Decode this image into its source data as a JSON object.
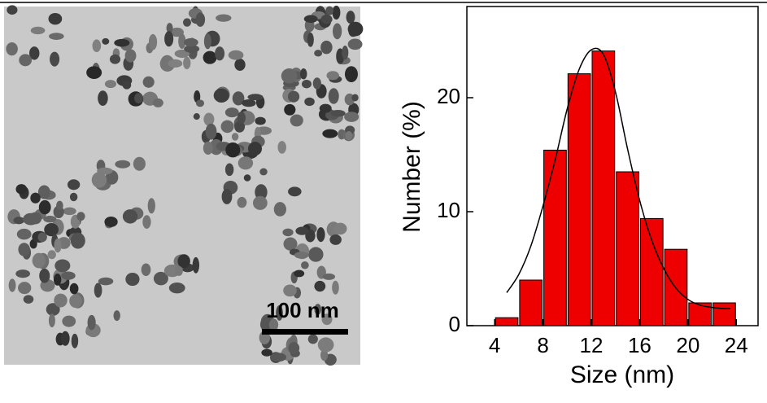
{
  "image": {
    "scale_bar": "100 nm"
  },
  "chart_data": {
    "type": "histogram",
    "xlabel": "Size (nm)",
    "ylabel": "Number (%)",
    "bins": [
      4,
      6,
      8,
      10,
      12,
      14,
      16,
      18,
      20,
      22,
      24
    ],
    "values": [
      0.7,
      4,
      15.4,
      22.1,
      24.1,
      13.5,
      9.4,
      6.7,
      2,
      2
    ],
    "color": "#ee0000",
    "edgecolor": "#000000",
    "fit": {
      "color": "#000000",
      "x": [
        5,
        6,
        7,
        8,
        9,
        10,
        11,
        12,
        13,
        14,
        15,
        16,
        17,
        18,
        19,
        20,
        21,
        22,
        23,
        23.5
      ],
      "values": [
        2.9,
        4.5,
        7,
        10.5,
        14.5,
        19,
        22.5,
        24.2,
        23.8,
        20.5,
        15.5,
        11,
        7.5,
        5,
        3.3,
        2.3,
        1.8,
        1.6,
        1.5,
        1.5
      ]
    },
    "xlim": [
      1.7,
      25.8
    ],
    "ylim": [
      0,
      28
    ],
    "xticks": [
      4,
      8,
      12,
      16,
      20,
      24
    ],
    "yticks": [
      0,
      10,
      20
    ]
  }
}
